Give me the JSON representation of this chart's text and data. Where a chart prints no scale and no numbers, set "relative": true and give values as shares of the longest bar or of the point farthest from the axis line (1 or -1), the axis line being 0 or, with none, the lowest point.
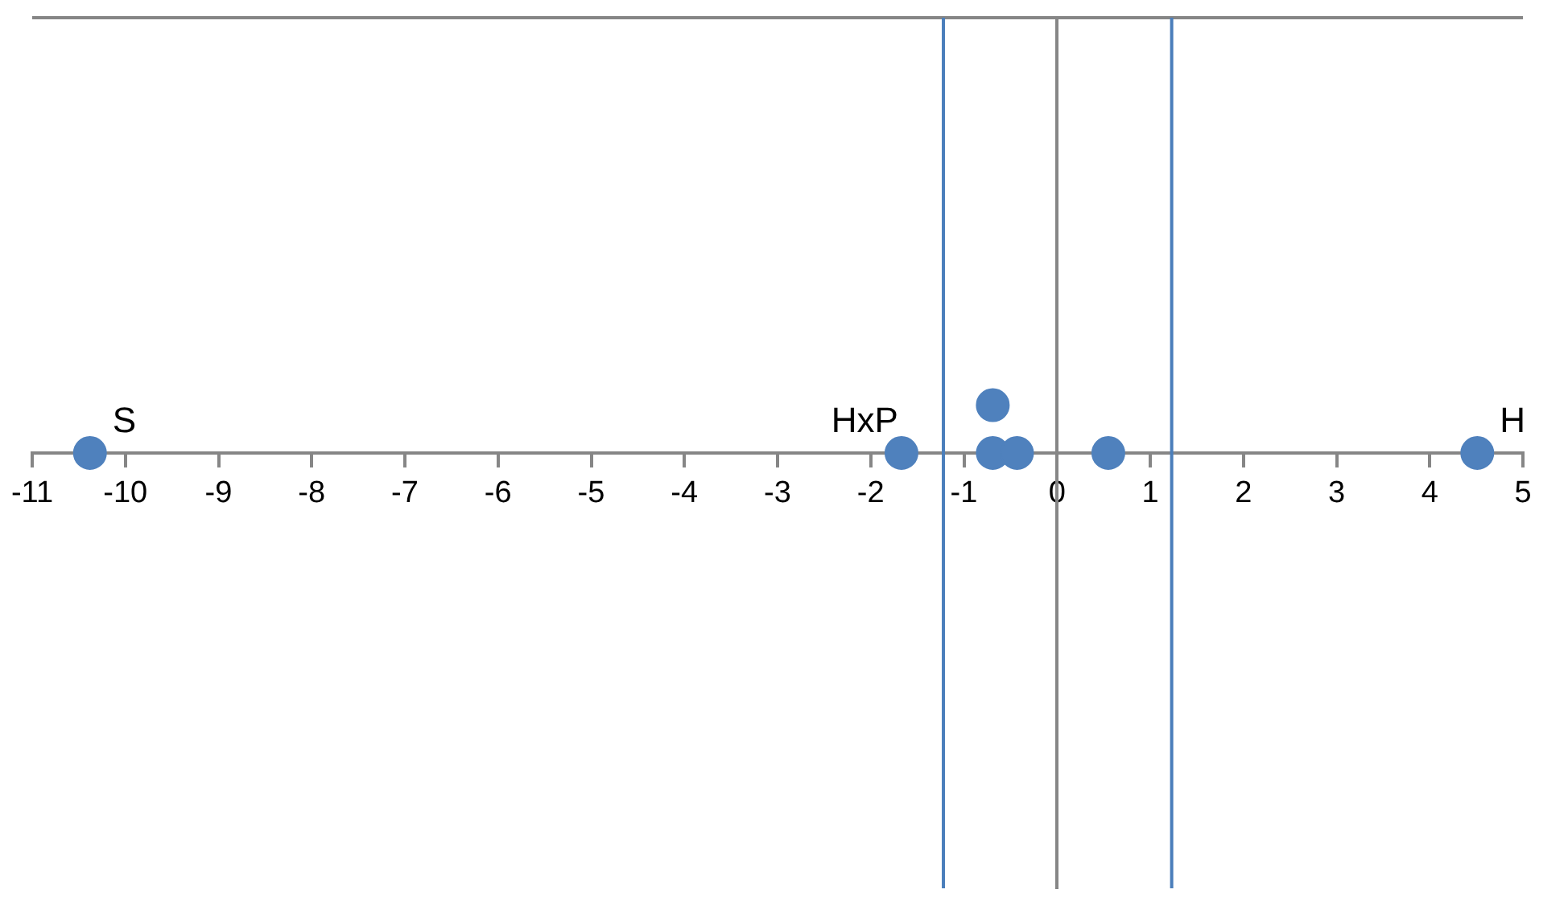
{
  "chart_data": {
    "type": "scatter",
    "relative": true,
    "marker": "circle",
    "series": [
      {
        "color": "#4f81bd",
        "x": [
          -10.38,
          -1.67,
          -0.69,
          -0.69,
          -0.43,
          0.55,
          4.51
        ],
        "values": [
          0,
          0,
          1,
          0,
          0,
          0,
          0
        ]
      }
    ],
    "xlim": [
      -11,
      5
    ],
    "xticks": [
      -11,
      -10,
      -9,
      -8,
      -7,
      -6,
      -5,
      -4,
      -3,
      -2,
      -1,
      0,
      1,
      2,
      3,
      4,
      5
    ],
    "ref_lines": [
      {
        "axis": "x",
        "value": -1.22,
        "color": "#4a7ebb"
      },
      {
        "axis": "x",
        "value": 1.23,
        "color": "#4a7ebb"
      }
    ],
    "annotations": [
      {
        "text": "S",
        "x": -10.38,
        "y": 0
      },
      {
        "text": "HxP",
        "x": -1.67,
        "y": 0
      },
      {
        "text": "H",
        "x": 4.51,
        "y": 0
      }
    ]
  }
}
